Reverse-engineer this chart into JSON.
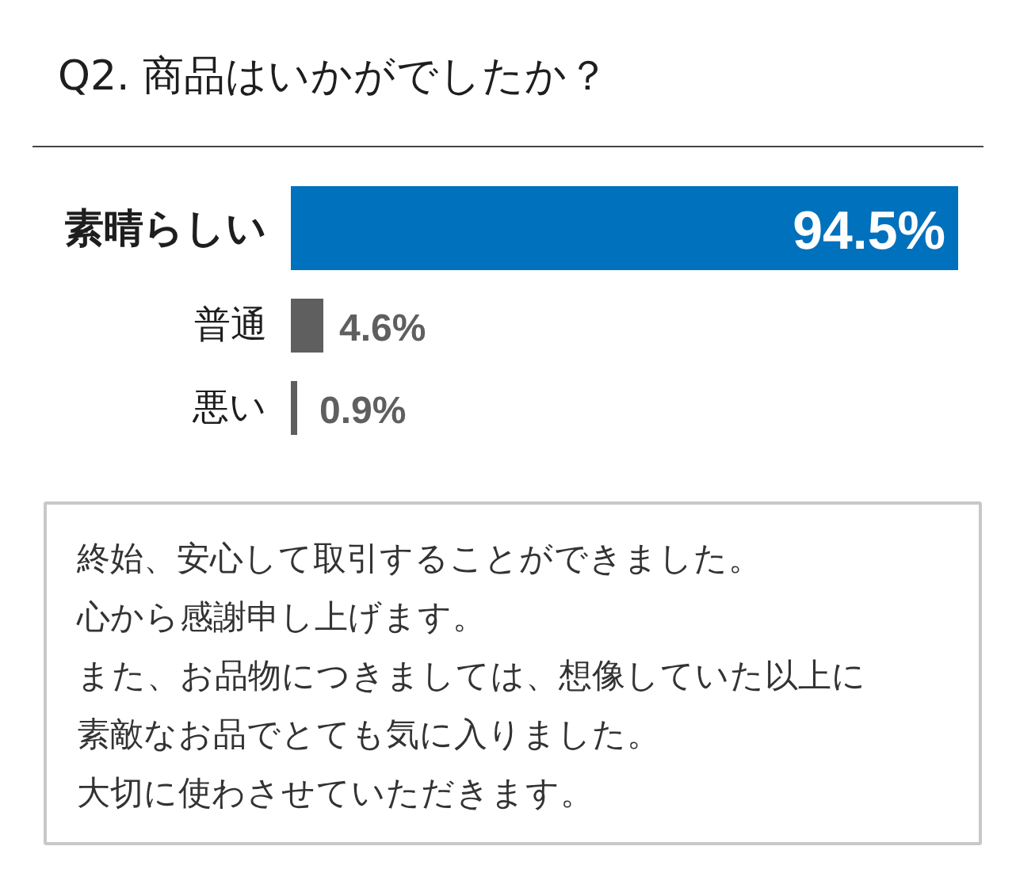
{
  "chart_data": {
    "type": "bar",
    "orientation": "horizontal",
    "title": "Q2. 商品はいかがでしたか？",
    "categories": [
      "素晴らしい",
      "普通",
      "悪い"
    ],
    "values": [
      94.5,
      4.6,
      0.9
    ],
    "colors": [
      "#0071bc",
      "#5f5f5f",
      "#5f5f5f"
    ],
    "value_labels": [
      "94.5%",
      "4.6%",
      "0.9%"
    ],
    "annotations": [
      "終始、安心して取引することができました。",
      "心から感謝申し上げます。",
      "また、お品物につきましては、想像していた以上に",
      "素敵なお品でとても気に入りました。",
      "大切に使わさせていただきます。"
    ]
  }
}
